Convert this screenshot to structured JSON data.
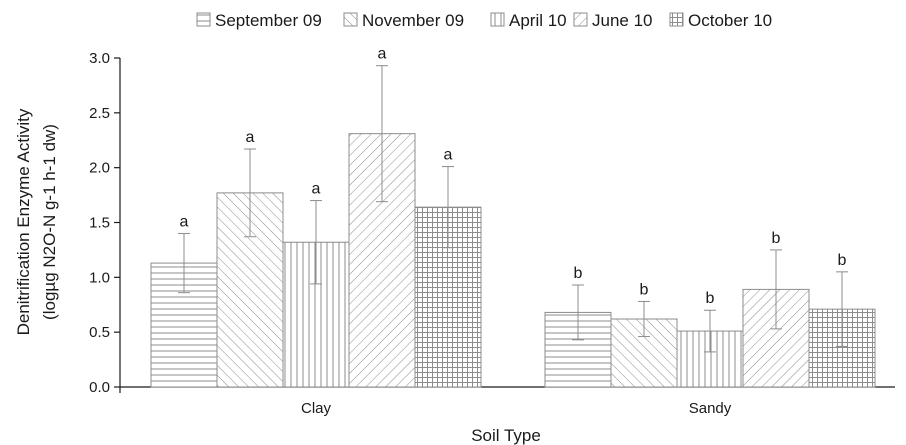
{
  "chart_data": {
    "type": "bar",
    "xlabel": "Soil Type",
    "ylabel_lines": [
      "Denitrification Enzyme Activity",
      "(logµg N2O-N g-1 h-1 dw)"
    ],
    "categories": [
      "Clay",
      "Sandy"
    ],
    "ylim": [
      0,
      3.0
    ],
    "yticks": [
      "0.0",
      "0.5",
      "1.0",
      "1.5",
      "2.0",
      "2.5",
      "3.0"
    ],
    "grid": false,
    "legend_position": "top",
    "series": [
      {
        "name": "September 09",
        "pattern": "horizontal-lines",
        "values": [
          1.13,
          0.68
        ],
        "errors": [
          0.27,
          0.25
        ],
        "labels": [
          "a",
          "b"
        ]
      },
      {
        "name": "November 09",
        "pattern": "diagonal-lines",
        "values": [
          1.77,
          0.62
        ],
        "errors": [
          0.4,
          0.16
        ],
        "labels": [
          "a",
          "b"
        ]
      },
      {
        "name": "April 10",
        "pattern": "vertical-lines",
        "values": [
          1.32,
          0.51
        ],
        "errors": [
          0.38,
          0.19
        ],
        "labels": [
          "a",
          "b"
        ]
      },
      {
        "name": "June 10",
        "pattern": "back-diagonal-lines",
        "values": [
          2.31,
          0.89
        ],
        "errors": [
          0.62,
          0.36
        ],
        "labels": [
          "a",
          "b"
        ]
      },
      {
        "name": "October 10",
        "pattern": "grid",
        "values": [
          1.64,
          0.71
        ],
        "errors": [
          0.37,
          0.34
        ],
        "labels": [
          "a",
          "b"
        ]
      }
    ]
  }
}
